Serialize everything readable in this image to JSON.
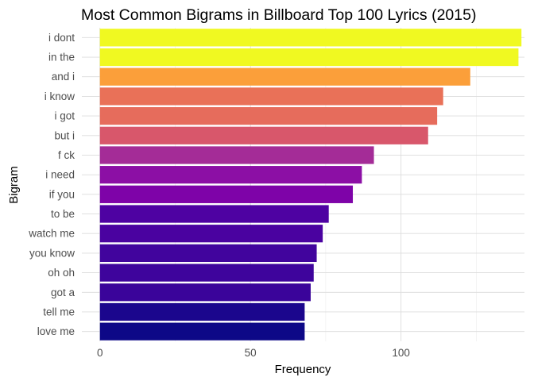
{
  "chart_data": {
    "type": "bar",
    "orientation": "horizontal",
    "title": "Most Common Bigrams in Billboard Top 100 Lyrics (2015)",
    "xlabel": "Frequency",
    "ylabel": "Bigram",
    "xlim": [
      -6,
      141
    ],
    "xticks": [
      0,
      50,
      100
    ],
    "grid": true,
    "legend": "none",
    "categories": [
      "i dont",
      "in the",
      "and i",
      "i know",
      "i got",
      "but i",
      "f ck",
      "i need",
      "if you",
      "to be",
      "watch me",
      "you know",
      "oh oh",
      "got a",
      "tell me",
      "love me"
    ],
    "values": [
      140,
      139,
      123,
      114,
      112,
      109,
      91,
      87,
      84,
      76,
      74,
      72,
      71,
      70,
      68,
      68
    ],
    "colors": [
      "#F0F921",
      "#F0F921",
      "#FB9F3A",
      "#E97158",
      "#E66C5C",
      "#D8576B",
      "#A42C97",
      "#8C0FA5",
      "#7E03A8",
      "#4E02A2",
      "#4A02A0",
      "#41049D",
      "#3E049C",
      "#3A049A",
      "#1B068D",
      "#0D0887"
    ]
  }
}
